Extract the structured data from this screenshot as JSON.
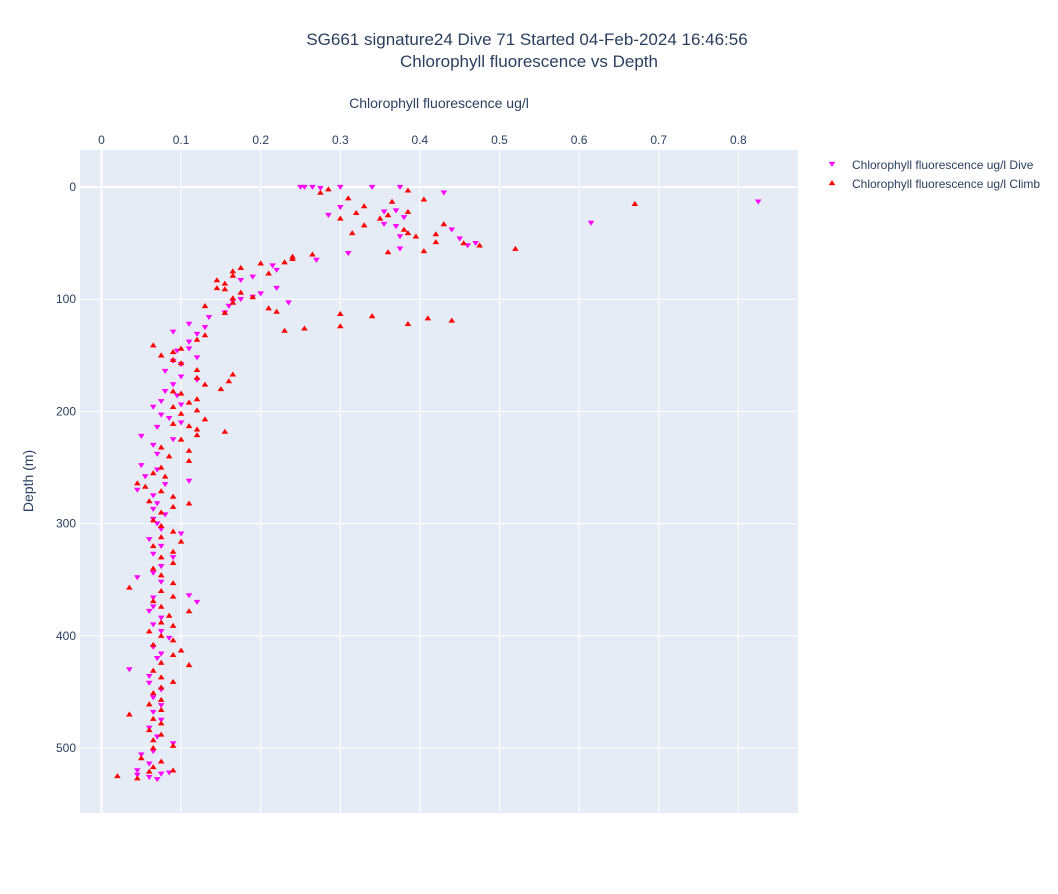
{
  "chart_data": {
    "type": "scatter",
    "title_lines": [
      "SG661 signature24 Dive 71 Started 04-Feb-2024 16:46:56",
      "Chlorophyll fluorescence vs Depth"
    ],
    "xlabel": "Chlorophyll fluorescence ug/l",
    "ylabel": "Depth (m)",
    "x_axis_side": "top",
    "y_reversed": true,
    "xlim": [
      -0.027,
      0.875
    ],
    "ylim": [
      558,
      -33
    ],
    "x_ticks": [
      0,
      0.1,
      0.2,
      0.3,
      0.4,
      0.5,
      0.6,
      0.7,
      0.8
    ],
    "x_tick_labels": [
      "0",
      "0.1",
      "0.2",
      "0.3",
      "0.4",
      "0.5",
      "0.6",
      "0.7",
      "0.8"
    ],
    "y_ticks": [
      0,
      100,
      200,
      300,
      400,
      500
    ],
    "y_tick_labels": [
      "0",
      "100",
      "200",
      "300",
      "400",
      "500"
    ],
    "grid": true,
    "legend_position": "top-right",
    "colors": {
      "plot_bg": "#e5ecf6",
      "grid": "#ffffff",
      "text": "#2a3f5f"
    },
    "series": [
      {
        "name": "Chlorophyll fluorescence ug/l Dive",
        "marker": "triangle-down",
        "color": "#ff00ff",
        "points": [
          [
            0.25,
            0
          ],
          [
            0.255,
            0
          ],
          [
            0.265,
            0
          ],
          [
            0.275,
            1
          ],
          [
            0.3,
            0
          ],
          [
            0.34,
            0
          ],
          [
            0.375,
            0
          ],
          [
            0.43,
            5
          ],
          [
            0.825,
            13
          ],
          [
            0.615,
            32
          ],
          [
            0.3,
            18
          ],
          [
            0.355,
            22
          ],
          [
            0.37,
            21
          ],
          [
            0.285,
            25
          ],
          [
            0.355,
            33
          ],
          [
            0.37,
            35
          ],
          [
            0.38,
            27
          ],
          [
            0.44,
            38
          ],
          [
            0.45,
            46
          ],
          [
            0.46,
            52
          ],
          [
            0.47,
            50
          ],
          [
            0.375,
            44
          ],
          [
            0.375,
            55
          ],
          [
            0.31,
            59
          ],
          [
            0.27,
            65
          ],
          [
            0.215,
            70
          ],
          [
            0.22,
            74
          ],
          [
            0.19,
            80
          ],
          [
            0.175,
            83
          ],
          [
            0.22,
            90
          ],
          [
            0.2,
            95
          ],
          [
            0.19,
            98
          ],
          [
            0.175,
            100
          ],
          [
            0.165,
            102
          ],
          [
            0.235,
            103
          ],
          [
            0.16,
            106
          ],
          [
            0.155,
            112
          ],
          [
            0.135,
            116
          ],
          [
            0.11,
            122
          ],
          [
            0.13,
            125
          ],
          [
            0.12,
            131
          ],
          [
            0.09,
            129
          ],
          [
            0.11,
            138
          ],
          [
            0.11,
            144
          ],
          [
            0.095,
            146
          ],
          [
            0.12,
            152
          ],
          [
            0.09,
            155
          ],
          [
            0.1,
            158
          ],
          [
            0.08,
            164
          ],
          [
            0.1,
            169
          ],
          [
            0.12,
            172
          ],
          [
            0.09,
            176
          ],
          [
            0.08,
            182
          ],
          [
            0.095,
            186
          ],
          [
            0.075,
            191
          ],
          [
            0.1,
            194
          ],
          [
            0.065,
            196
          ],
          [
            0.075,
            203
          ],
          [
            0.085,
            206
          ],
          [
            0.1,
            210
          ],
          [
            0.07,
            214
          ],
          [
            0.05,
            222
          ],
          [
            0.09,
            225
          ],
          [
            0.065,
            230
          ],
          [
            0.07,
            238
          ],
          [
            0.05,
            248
          ],
          [
            0.07,
            252
          ],
          [
            0.11,
            262
          ],
          [
            0.08,
            265
          ],
          [
            0.045,
            270
          ],
          [
            0.055,
            258
          ],
          [
            0.065,
            275
          ],
          [
            0.07,
            282
          ],
          [
            0.065,
            287
          ],
          [
            0.08,
            292
          ],
          [
            0.065,
            296
          ],
          [
            0.07,
            300
          ],
          [
            0.075,
            305
          ],
          [
            0.1,
            309
          ],
          [
            0.06,
            314
          ],
          [
            0.075,
            320
          ],
          [
            0.065,
            327
          ],
          [
            0.09,
            330
          ],
          [
            0.075,
            338
          ],
          [
            0.065,
            344
          ],
          [
            0.045,
            348
          ],
          [
            0.075,
            352
          ],
          [
            0.11,
            364
          ],
          [
            0.12,
            370
          ],
          [
            0.065,
            366
          ],
          [
            0.065,
            374
          ],
          [
            0.06,
            378
          ],
          [
            0.075,
            384
          ],
          [
            0.065,
            390
          ],
          [
            0.075,
            396
          ],
          [
            0.085,
            402
          ],
          [
            0.065,
            410
          ],
          [
            0.075,
            416
          ],
          [
            0.07,
            420
          ],
          [
            0.035,
            430
          ],
          [
            0.06,
            436
          ],
          [
            0.06,
            442
          ],
          [
            0.075,
            448
          ],
          [
            0.065,
            455
          ],
          [
            0.075,
            462
          ],
          [
            0.065,
            468
          ],
          [
            0.075,
            475
          ],
          [
            0.06,
            482
          ],
          [
            0.07,
            490
          ],
          [
            0.09,
            496
          ],
          [
            0.065,
            503
          ],
          [
            0.05,
            506
          ],
          [
            0.06,
            514
          ],
          [
            0.045,
            520
          ],
          [
            0.075,
            523
          ],
          [
            0.06,
            526
          ],
          [
            0.045,
            524
          ],
          [
            0.07,
            528
          ],
          [
            0.085,
            522
          ]
        ]
      },
      {
        "name": "Chlorophyll fluorescence ug/l Climb",
        "marker": "triangle-up",
        "color": "#ff0000",
        "points": [
          [
            0.275,
            5
          ],
          [
            0.285,
            2
          ],
          [
            0.385,
            3
          ],
          [
            0.31,
            10
          ],
          [
            0.365,
            13
          ],
          [
            0.405,
            11
          ],
          [
            0.67,
            15
          ],
          [
            0.33,
            17
          ],
          [
            0.32,
            23
          ],
          [
            0.35,
            28
          ],
          [
            0.36,
            25
          ],
          [
            0.385,
            22
          ],
          [
            0.3,
            28
          ],
          [
            0.33,
            34
          ],
          [
            0.38,
            38
          ],
          [
            0.43,
            33
          ],
          [
            0.315,
            41
          ],
          [
            0.385,
            41
          ],
          [
            0.395,
            44
          ],
          [
            0.42,
            42
          ],
          [
            0.42,
            49
          ],
          [
            0.455,
            50
          ],
          [
            0.475,
            52
          ],
          [
            0.52,
            55
          ],
          [
            0.405,
            57
          ],
          [
            0.36,
            58
          ],
          [
            0.265,
            60
          ],
          [
            0.24,
            62
          ],
          [
            0.24,
            64
          ],
          [
            0.23,
            67
          ],
          [
            0.2,
            68
          ],
          [
            0.175,
            72
          ],
          [
            0.165,
            75
          ],
          [
            0.21,
            77
          ],
          [
            0.165,
            79
          ],
          [
            0.145,
            83
          ],
          [
            0.155,
            86
          ],
          [
            0.145,
            90
          ],
          [
            0.155,
            91
          ],
          [
            0.175,
            94
          ],
          [
            0.19,
            98
          ],
          [
            0.165,
            99
          ],
          [
            0.165,
            103
          ],
          [
            0.13,
            106
          ],
          [
            0.21,
            108
          ],
          [
            0.22,
            111
          ],
          [
            0.155,
            112
          ],
          [
            0.3,
            113
          ],
          [
            0.34,
            115
          ],
          [
            0.41,
            117
          ],
          [
            0.44,
            119
          ],
          [
            0.385,
            122
          ],
          [
            0.3,
            124
          ],
          [
            0.255,
            126
          ],
          [
            0.23,
            128
          ],
          [
            0.13,
            132
          ],
          [
            0.12,
            136
          ],
          [
            0.065,
            141
          ],
          [
            0.1,
            144
          ],
          [
            0.09,
            147
          ],
          [
            0.075,
            150
          ],
          [
            0.09,
            154
          ],
          [
            0.1,
            157
          ],
          [
            0.12,
            163
          ],
          [
            0.165,
            167
          ],
          [
            0.12,
            170
          ],
          [
            0.16,
            173
          ],
          [
            0.13,
            176
          ],
          [
            0.15,
            180
          ],
          [
            0.09,
            182
          ],
          [
            0.1,
            184
          ],
          [
            0.12,
            189
          ],
          [
            0.11,
            192
          ],
          [
            0.09,
            196
          ],
          [
            0.12,
            199
          ],
          [
            0.1,
            202
          ],
          [
            0.13,
            207
          ],
          [
            0.09,
            211
          ],
          [
            0.11,
            213
          ],
          [
            0.12,
            216
          ],
          [
            0.155,
            218
          ],
          [
            0.12,
            221
          ],
          [
            0.1,
            225
          ],
          [
            0.075,
            232
          ],
          [
            0.11,
            235
          ],
          [
            0.085,
            240
          ],
          [
            0.11,
            244
          ],
          [
            0.075,
            250
          ],
          [
            0.065,
            255
          ],
          [
            0.08,
            258
          ],
          [
            0.045,
            264
          ],
          [
            0.055,
            267
          ],
          [
            0.075,
            271
          ],
          [
            0.09,
            276
          ],
          [
            0.06,
            280
          ],
          [
            0.11,
            282
          ],
          [
            0.09,
            285
          ],
          [
            0.075,
            290
          ],
          [
            0.065,
            297
          ],
          [
            0.075,
            302
          ],
          [
            0.09,
            307
          ],
          [
            0.075,
            312
          ],
          [
            0.1,
            316
          ],
          [
            0.065,
            320
          ],
          [
            0.09,
            325
          ],
          [
            0.075,
            330
          ],
          [
            0.09,
            335
          ],
          [
            0.065,
            340
          ],
          [
            0.075,
            346
          ],
          [
            0.09,
            353
          ],
          [
            0.035,
            357
          ],
          [
            0.075,
            360
          ],
          [
            0.09,
            365
          ],
          [
            0.065,
            369
          ],
          [
            0.075,
            374
          ],
          [
            0.11,
            378
          ],
          [
            0.085,
            382
          ],
          [
            0.075,
            388
          ],
          [
            0.09,
            391
          ],
          [
            0.06,
            396
          ],
          [
            0.075,
            400
          ],
          [
            0.09,
            404
          ],
          [
            0.065,
            408
          ],
          [
            0.1,
            413
          ],
          [
            0.09,
            417
          ],
          [
            0.075,
            424
          ],
          [
            0.11,
            426
          ],
          [
            0.065,
            431
          ],
          [
            0.075,
            437
          ],
          [
            0.09,
            441
          ],
          [
            0.075,
            446
          ],
          [
            0.065,
            451
          ],
          [
            0.075,
            457
          ],
          [
            0.06,
            461
          ],
          [
            0.075,
            466
          ],
          [
            0.035,
            470
          ],
          [
            0.065,
            474
          ],
          [
            0.075,
            478
          ],
          [
            0.06,
            484
          ],
          [
            0.075,
            488
          ],
          [
            0.065,
            493
          ],
          [
            0.09,
            498
          ],
          [
            0.065,
            500
          ],
          [
            0.05,
            509
          ],
          [
            0.075,
            512
          ],
          [
            0.065,
            517
          ],
          [
            0.09,
            520
          ],
          [
            0.02,
            525
          ],
          [
            0.06,
            521
          ],
          [
            0.045,
            527
          ]
        ]
      }
    ]
  }
}
